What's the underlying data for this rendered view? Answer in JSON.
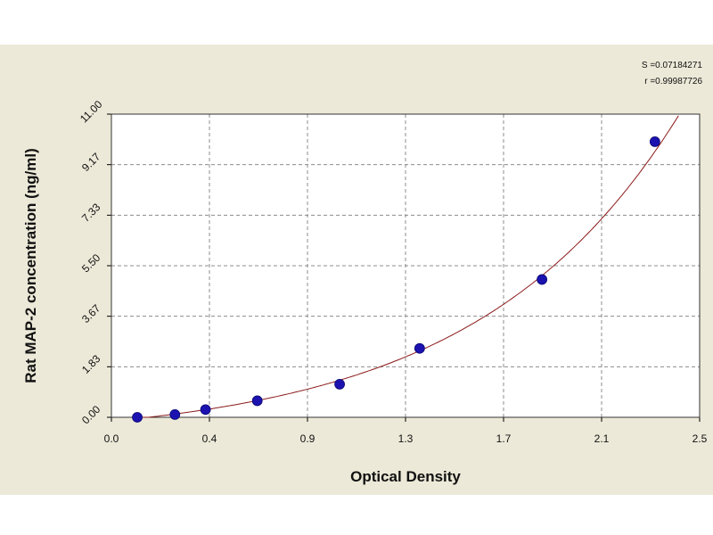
{
  "chart_data": {
    "type": "scatter",
    "title": "",
    "xlabel": "Optical Density",
    "ylabel": "Rat MAP-2 concentration (ng/ml)",
    "xlim": [
      0.0,
      2.5
    ],
    "ylim": [
      0.0,
      11.0
    ],
    "xticks": [
      "0.0",
      "0.4",
      "0.9",
      "1.3",
      "1.7",
      "2.1",
      "2.5"
    ],
    "yticks": [
      "0.00",
      "1.83",
      "3.67",
      "5.50",
      "7.33",
      "9.17",
      "11.00"
    ],
    "grid": true,
    "legend": "none",
    "series": [
      {
        "type": "scatter",
        "x": [
          0.11,
          0.27,
          0.4,
          0.62,
          0.97,
          1.31,
          1.83,
          2.31
        ],
        "y": [
          0.0,
          0.1,
          0.28,
          0.6,
          1.2,
          2.5,
          5.0,
          10.0
        ],
        "color": "#1b12b0"
      },
      {
        "type": "line",
        "fit": "exponential",
        "color": "#8b1a1a"
      }
    ],
    "annotations": {
      "s": "S =0.07184271",
      "r": "r =0.99987726"
    },
    "colors": {
      "panel": "#ece9d8",
      "plot": "#ffffff",
      "grid": "#8c8c8c",
      "marker": "#1b12b0",
      "curve": "#8b1a1a"
    }
  }
}
